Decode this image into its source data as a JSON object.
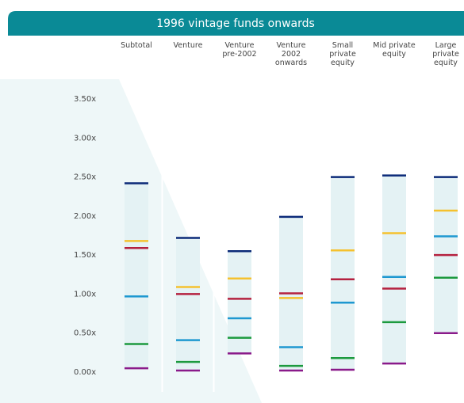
{
  "chart_data": {
    "type": "range-markers",
    "title": "1996 vintage funds onwards",
    "categories": [
      "Subtotal",
      "Venture",
      "Venture pre-2002",
      "Venture 2002 onwards",
      "Small private equity",
      "Mid private equity",
      "Large private equity"
    ],
    "series": [
      {
        "color": "#0b2a78",
        "values": [
          2.42,
          1.72,
          1.55,
          1.99,
          2.5,
          2.52,
          2.5
        ]
      },
      {
        "color": "#f5c12e",
        "values": [
          1.68,
          1.09,
          1.2,
          0.95,
          1.56,
          1.78,
          2.07
        ]
      },
      {
        "color": "#b5213f",
        "values": [
          1.59,
          1.0,
          0.94,
          1.01,
          1.19,
          1.07,
          1.5
        ]
      },
      {
        "color": "#1e98d0",
        "values": [
          0.97,
          0.41,
          0.69,
          0.32,
          0.89,
          1.22,
          1.74
        ]
      },
      {
        "color": "#1c9a3e",
        "values": [
          0.36,
          0.13,
          0.44,
          0.08,
          0.18,
          0.64,
          1.21
        ]
      },
      {
        "color": "#8a1a8a",
        "values": [
          0.05,
          0.02,
          0.24,
          0.02,
          0.03,
          0.11,
          0.5
        ]
      }
    ],
    "ylim": [
      0,
      3.5
    ],
    "yticks": [
      {
        "value": 0,
        "label": "0.00x"
      },
      {
        "value": 0.5,
        "label": "0.50x"
      },
      {
        "value": 1,
        "label": "1.00x"
      },
      {
        "value": 1.5,
        "label": "1.50x"
      },
      {
        "value": 2,
        "label": "2.00x"
      },
      {
        "value": 2.5,
        "label": "2.50x"
      },
      {
        "value": 3,
        "label": "3.00x"
      },
      {
        "value": 3.5,
        "label": "3.50x"
      }
    ]
  }
}
